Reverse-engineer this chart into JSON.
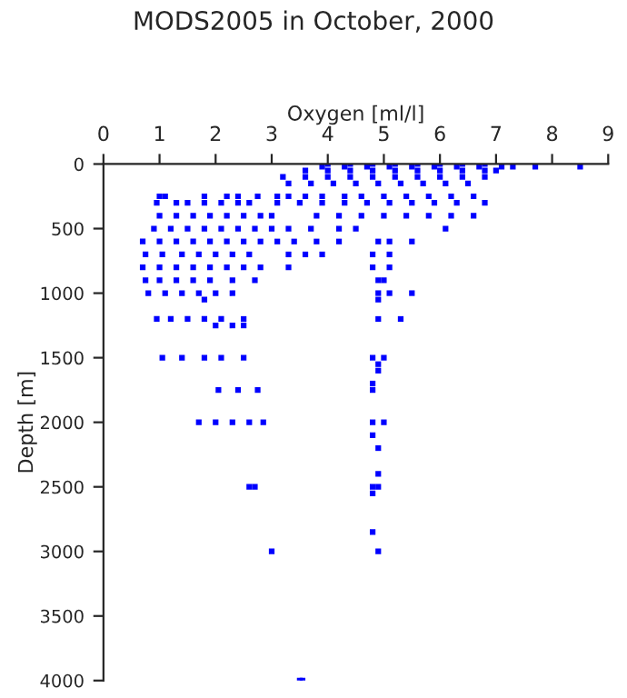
{
  "chart_data": {
    "type": "scatter",
    "title": "MODS2005 in October, 2000",
    "xlabel": "Oxygen [ml/l]",
    "ylabel": "Depth [m]",
    "xlim": [
      0,
      9
    ],
    "xticks": [
      0,
      1,
      2,
      3,
      4,
      5,
      6,
      7,
      8,
      9
    ],
    "ylim": [
      4000,
      0
    ],
    "yticks": [
      0,
      500,
      1000,
      1500,
      2000,
      2500,
      3000,
      3500,
      4000
    ],
    "grid": false,
    "legend": false,
    "marker": "square",
    "series": [
      {
        "color": "#0000ff",
        "x": [
          4.0,
          4.4,
          4.8,
          5.2,
          5.6,
          6.0,
          6.4,
          6.8,
          3.9,
          4.3,
          4.7,
          5.1,
          5.5,
          5.9,
          6.3,
          6.7,
          7.1,
          7.3,
          7.7,
          8.5,
          3.6,
          4.0,
          4.4,
          4.8,
          5.2,
          5.6,
          6.0,
          6.4,
          6.8,
          7.0,
          3.2,
          3.6,
          4.0,
          4.4,
          4.8,
          5.2,
          5.6,
          6.0,
          6.4,
          6.8,
          3.3,
          3.7,
          4.1,
          4.5,
          4.9,
          5.3,
          5.7,
          6.1,
          6.5,
          1.0,
          1.1,
          1.8,
          2.2,
          2.4,
          2.75,
          3.1,
          3.3,
          3.6,
          3.9,
          4.3,
          4.6,
          5.0,
          5.4,
          5.8,
          6.2,
          6.6,
          0.95,
          1.3,
          1.5,
          1.8,
          2.1,
          2.4,
          2.6,
          3.1,
          3.5,
          3.9,
          4.3,
          4.7,
          5.1,
          5.5,
          5.9,
          6.3,
          6.8,
          1.0,
          1.3,
          1.6,
          1.9,
          2.2,
          2.5,
          2.8,
          3.0,
          3.8,
          4.2,
          4.6,
          5.0,
          5.4,
          5.8,
          6.2,
          6.6,
          0.9,
          1.2,
          1.5,
          1.8,
          2.1,
          2.4,
          2.7,
          3.0,
          3.3,
          3.7,
          4.2,
          4.5,
          6.1,
          0.7,
          1.0,
          1.3,
          1.6,
          1.9,
          2.2,
          2.5,
          2.8,
          3.1,
          3.4,
          3.8,
          4.2,
          4.9,
          5.1,
          5.5,
          0.75,
          1.05,
          1.4,
          1.7,
          2.0,
          2.3,
          2.6,
          3.3,
          3.6,
          3.9,
          4.8,
          5.1,
          0.7,
          1.0,
          1.3,
          1.6,
          1.9,
          2.2,
          2.5,
          2.8,
          3.3,
          4.8,
          5.1,
          0.75,
          1.0,
          1.3,
          1.6,
          1.9,
          2.3,
          2.7,
          4.9,
          5.0,
          0.8,
          1.1,
          1.4,
          1.7,
          2.0,
          2.3,
          4.9,
          5.1,
          5.5,
          1.8,
          4.9,
          0.95,
          1.2,
          1.5,
          1.8,
          2.1,
          2.5,
          4.9,
          5.3,
          2.0,
          2.3,
          2.5,
          1.05,
          1.4,
          1.8,
          2.1,
          2.5,
          4.8,
          5.0,
          4.9,
          4.9,
          4.8,
          2.05,
          2.4,
          2.75,
          4.8,
          1.7,
          2.0,
          2.3,
          2.6,
          2.85,
          4.8,
          5.0,
          4.8,
          4.9,
          4.9,
          2.6,
          2.7,
          4.8,
          4.9,
          4.8,
          4.8,
          3.0,
          4.9,
          3.5,
          3.55
        ],
        "values": [
          0,
          0,
          0,
          0,
          0,
          0,
          0,
          0,
          20,
          20,
          20,
          20,
          20,
          20,
          20,
          20,
          20,
          20,
          20,
          20,
          50,
          50,
          50,
          50,
          50,
          50,
          50,
          50,
          50,
          50,
          100,
          100,
          100,
          100,
          100,
          100,
          100,
          100,
          100,
          100,
          150,
          150,
          150,
          150,
          150,
          150,
          150,
          150,
          150,
          250,
          250,
          250,
          250,
          250,
          250,
          250,
          250,
          250,
          250,
          250,
          250,
          250,
          250,
          250,
          250,
          250,
          300,
          300,
          300,
          300,
          300,
          300,
          300,
          300,
          300,
          300,
          300,
          300,
          300,
          300,
          300,
          300,
          300,
          400,
          400,
          400,
          400,
          400,
          400,
          400,
          400,
          400,
          400,
          400,
          400,
          400,
          400,
          400,
          400,
          500,
          500,
          500,
          500,
          500,
          500,
          500,
          500,
          500,
          500,
          500,
          500,
          500,
          600,
          600,
          600,
          600,
          600,
          600,
          600,
          600,
          600,
          600,
          600,
          600,
          600,
          600,
          600,
          700,
          700,
          700,
          700,
          700,
          700,
          700,
          700,
          700,
          700,
          700,
          700,
          800,
          800,
          800,
          800,
          800,
          800,
          800,
          800,
          800,
          800,
          800,
          900,
          900,
          900,
          900,
          900,
          900,
          900,
          900,
          900,
          1000,
          1000,
          1000,
          1000,
          1000,
          1000,
          1000,
          1000,
          1000,
          1050,
          1050,
          1200,
          1200,
          1200,
          1200,
          1200,
          1200,
          1200,
          1200,
          1250,
          1250,
          1250,
          1500,
          1500,
          1500,
          1500,
          1500,
          1500,
          1500,
          1550,
          1600,
          1700,
          1750,
          1750,
          1750,
          1750,
          2000,
          2000,
          2000,
          2000,
          2000,
          2000,
          2000,
          2100,
          2200,
          2400,
          2500,
          2500,
          2500,
          2500,
          2550,
          2850,
          3000,
          3000,
          4000,
          4000
        ]
      }
    ]
  }
}
